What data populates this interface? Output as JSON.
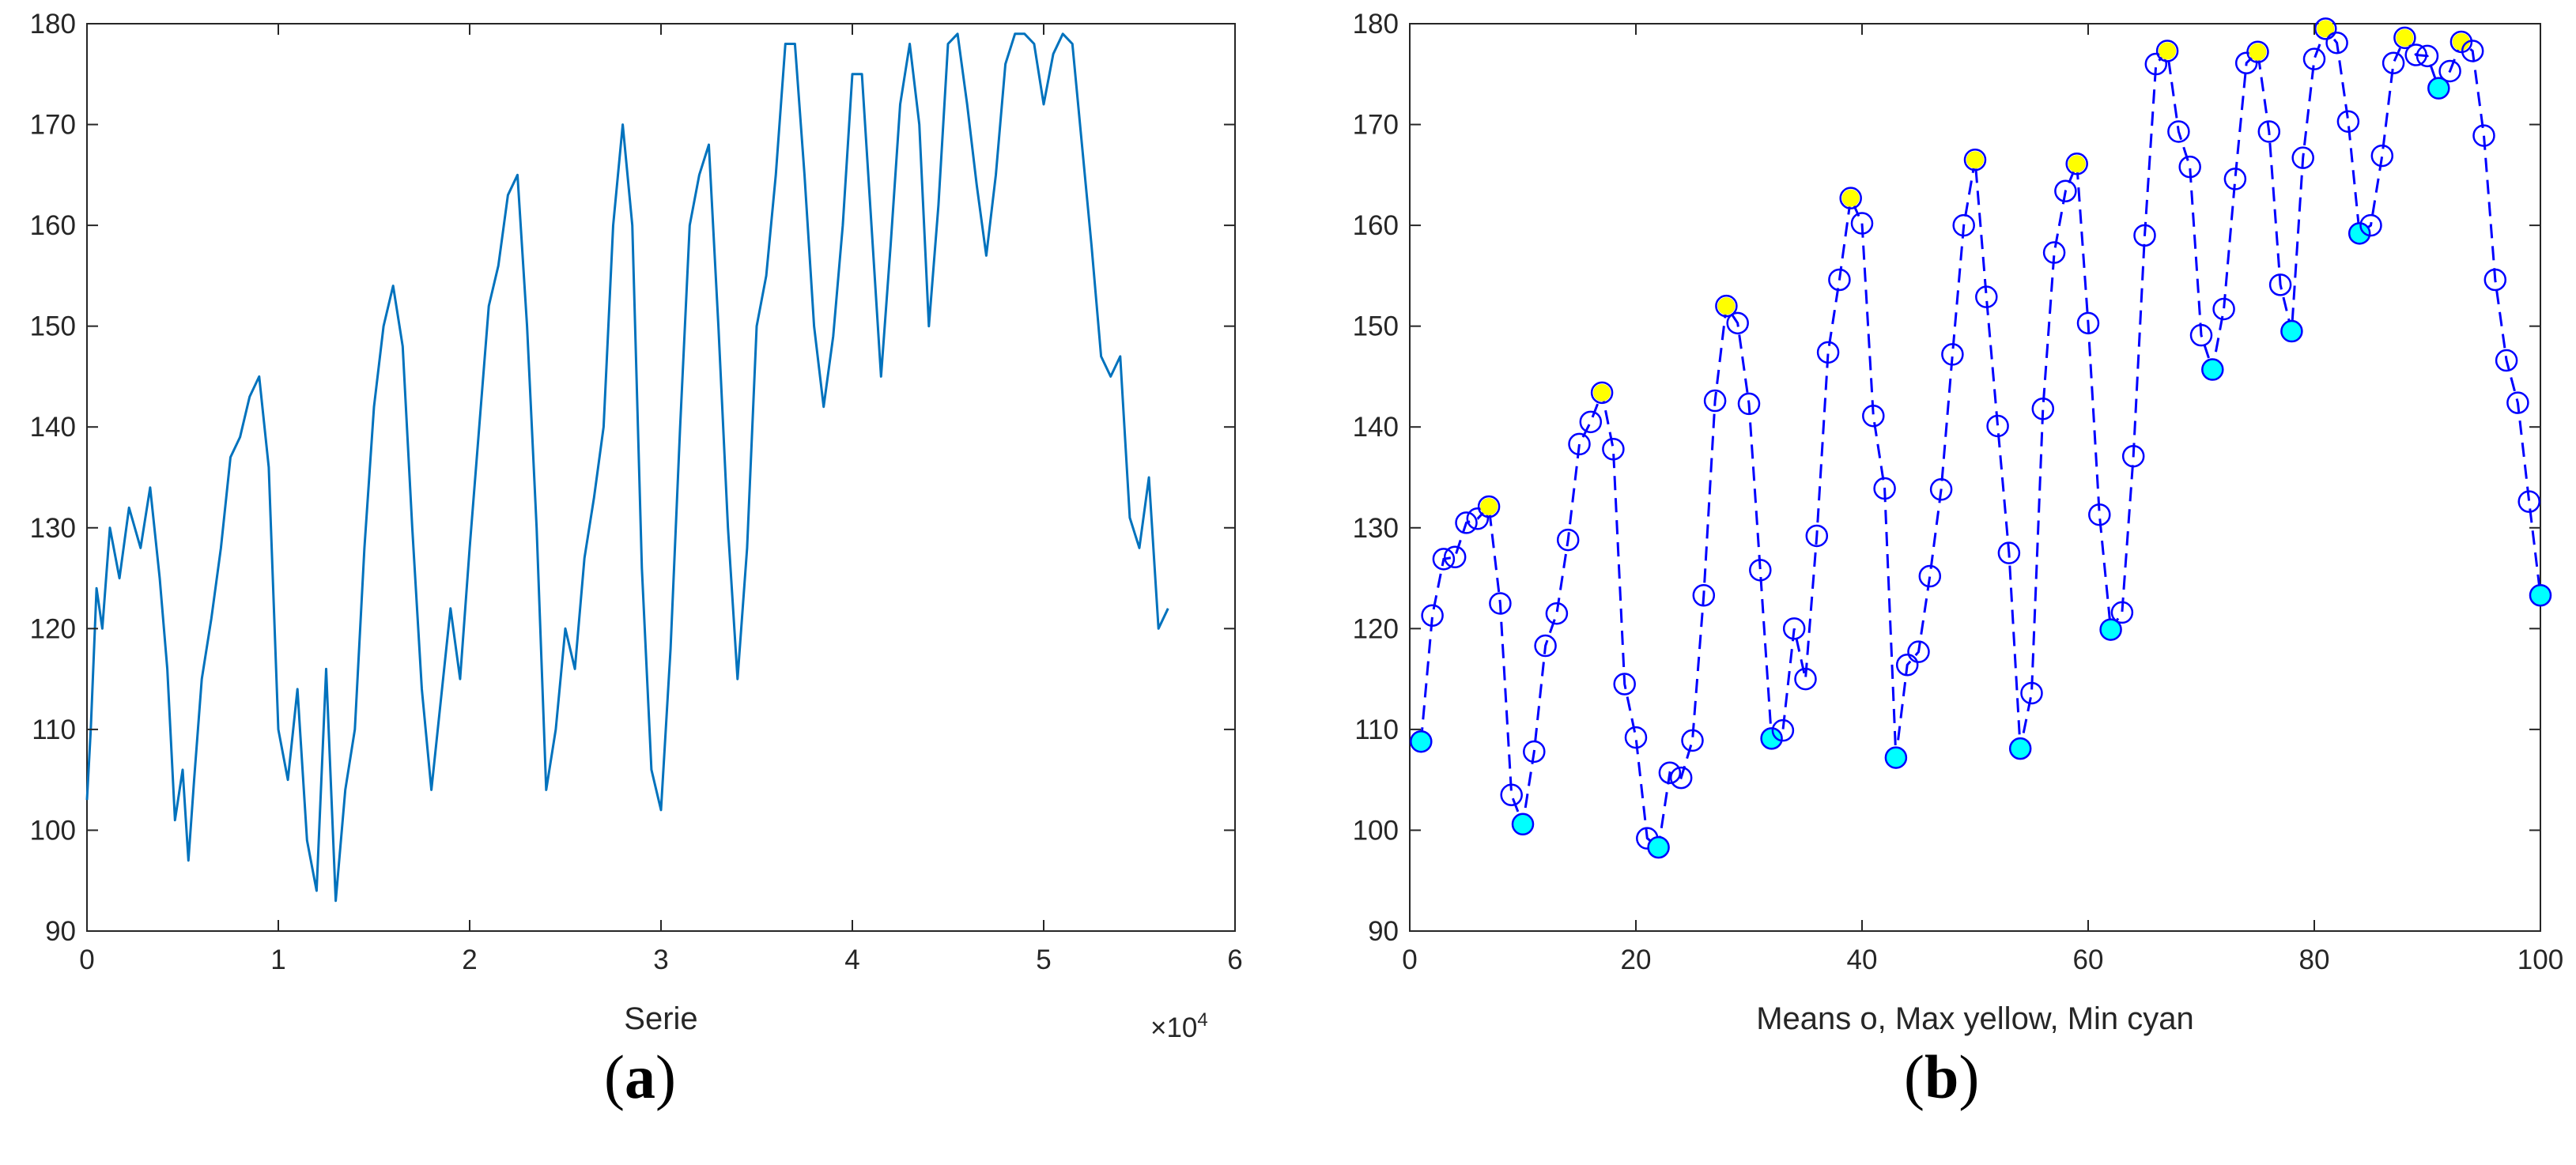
{
  "panels": [
    {
      "open": "(",
      "letter": "a",
      "close": ")"
    },
    {
      "open": "(",
      "letter": "b",
      "close": ")"
    }
  ],
  "chart_data": [
    {
      "type": "line",
      "xlabel": "Serie",
      "ylabel": "",
      "x_exponent_label": "×10",
      "x_exponent": "4",
      "xlim": [
        0,
        6
      ],
      "ylim": [
        90,
        180
      ],
      "xticks": [
        "0",
        "1",
        "2",
        "3",
        "4",
        "5",
        "6"
      ],
      "yticks": [
        "90",
        "100",
        "110",
        "120",
        "130",
        "140",
        "150",
        "160",
        "170",
        "180"
      ],
      "grid": false,
      "line_color": "#0072BD",
      "series": [
        {
          "x": [
            0,
            0.02,
            0.05,
            0.08,
            0.12,
            0.17,
            0.22,
            0.28,
            0.33,
            0.38,
            0.42,
            0.46,
            0.5,
            0.53,
            0.56,
            0.6,
            0.65,
            0.7,
            0.75,
            0.8,
            0.85,
            0.9,
            0.95,
            1.0,
            1.05,
            1.1,
            1.15,
            1.2,
            1.25,
            1.3,
            1.35,
            1.4,
            1.45,
            1.5,
            1.55,
            1.6,
            1.65,
            1.7,
            1.75,
            1.8,
            1.85,
            1.9,
            1.95,
            2.0,
            2.05,
            2.1,
            2.15,
            2.2,
            2.25,
            2.3,
            2.35,
            2.4,
            2.45,
            2.5,
            2.55,
            2.6,
            2.65,
            2.7,
            2.75,
            2.8,
            2.85,
            2.9,
            2.95,
            3.0,
            3.05,
            3.1,
            3.15,
            3.2,
            3.25,
            3.3,
            3.35,
            3.4,
            3.45,
            3.5,
            3.55,
            3.6,
            3.65,
            3.7,
            3.75,
            3.8,
            3.85,
            3.9,
            3.95,
            4.0,
            4.05,
            4.1,
            4.15,
            4.2,
            4.25,
            4.3,
            4.35,
            4.4,
            4.45,
            4.5,
            4.55,
            4.6,
            4.65,
            4.7,
            4.75,
            4.8,
            4.85,
            4.9,
            4.95,
            5.0,
            5.05,
            5.1,
            5.15,
            5.2,
            5.25,
            5.3,
            5.35,
            5.4,
            5.45,
            5.5,
            5.55,
            5.6,
            5.65
          ],
          "y": [
            103,
            110,
            124,
            120,
            130,
            125,
            132,
            128,
            134,
            125,
            116,
            101,
            106,
            97,
            105,
            115,
            121,
            128,
            137,
            139,
            143,
            145,
            136,
            110,
            105,
            114,
            99,
            94,
            116,
            93,
            104,
            110,
            128,
            142,
            150,
            154,
            148,
            130,
            114,
            104,
            113,
            122,
            115,
            128,
            140,
            152,
            156,
            163,
            165,
            150,
            130,
            104,
            110,
            120,
            116,
            127,
            133,
            140,
            160,
            170,
            160,
            126,
            106,
            102,
            118,
            140,
            160,
            165,
            168,
            150,
            130,
            115,
            128,
            150,
            155,
            165,
            178,
            178,
            165,
            150,
            142,
            149,
            160,
            175,
            175,
            160,
            145,
            158,
            172,
            178,
            170,
            150,
            162,
            178,
            179,
            172,
            164,
            157,
            165,
            176,
            179,
            179,
            178,
            172,
            177,
            179,
            178,
            168,
            158,
            147,
            145,
            147,
            131,
            128,
            135,
            120,
            122
          ]
        }
      ]
    },
    {
      "type": "line",
      "xlabel": "Means o, Max yellow, Min cyan",
      "ylabel": "",
      "xlim": [
        0,
        100
      ],
      "ylim": [
        90,
        180
      ],
      "xticks": [
        "0",
        "20",
        "40",
        "60",
        "80",
        "100"
      ],
      "yticks": [
        "90",
        "100",
        "110",
        "120",
        "130",
        "140",
        "150",
        "160",
        "170",
        "180"
      ],
      "grid": false,
      "line_style": "dashed",
      "marker": "circle",
      "line_color": "#0000FF",
      "max_color": "#FFFF00",
      "min_color": "#00FFFF",
      "series": [
        {
          "x": [
            1,
            2,
            3,
            4,
            5,
            6,
            7,
            8,
            9,
            10,
            11,
            12,
            13,
            14,
            15,
            16,
            17,
            18,
            19,
            20,
            21,
            22,
            23,
            24,
            25,
            26,
            27,
            28,
            29,
            30,
            31,
            32,
            33,
            34,
            35,
            36,
            37,
            38,
            39,
            40,
            41,
            42,
            43,
            44,
            45,
            46,
            47,
            48,
            49,
            50,
            51,
            52,
            53,
            54,
            55,
            56,
            57,
            58,
            59,
            60,
            61,
            62,
            63,
            64,
            65,
            66,
            67,
            68,
            69,
            70,
            71,
            72,
            73,
            74,
            75,
            76,
            77,
            78,
            79,
            80,
            81,
            82,
            83,
            84,
            85,
            86,
            87,
            88,
            89,
            90,
            91,
            92,
            93,
            94,
            95,
            96,
            97,
            98,
            99,
            100
          ],
          "y": [
            108.8,
            121.3,
            126.9,
            127.1,
            130.5,
            130.9,
            132.1,
            122.5,
            103.5,
            100.6,
            107.8,
            118.3,
            121.5,
            128.8,
            138.3,
            140.5,
            143.4,
            137.8,
            114.5,
            109.2,
            99.2,
            98.3,
            105.7,
            105.2,
            108.9,
            123.3,
            142.6,
            152.0,
            150.3,
            142.3,
            125.8,
            109.1,
            109.9,
            120.0,
            115.0,
            129.2,
            147.4,
            154.6,
            162.7,
            160.2,
            141.1,
            133.9,
            107.2,
            116.4,
            117.7,
            125.2,
            133.8,
            147.2,
            160.0,
            166.5,
            152.9,
            140.1,
            127.5,
            108.1,
            113.6,
            141.8,
            157.3,
            163.4,
            166.1,
            150.3,
            131.3,
            119.9,
            121.6,
            137.1,
            159.0,
            176.0,
            177.3,
            169.3,
            165.8,
            149.1,
            145.7,
            151.7,
            164.6,
            176.1,
            177.2,
            169.3,
            154.1,
            149.5,
            166.7,
            176.5,
            179.5,
            178.1,
            170.3,
            159.2,
            160.0,
            166.9,
            176.1,
            178.6,
            176.9,
            176.8,
            173.6,
            175.3,
            178.2,
            177.3,
            168.9,
            154.6,
            146.6,
            142.4,
            132.6,
            123.3
          ],
          "maxima_x": [
            7,
            17,
            28,
            39,
            50,
            59,
            67,
            75,
            81,
            88,
            93
          ],
          "minima_x": [
            1,
            10,
            22,
            32,
            43,
            54,
            62,
            71,
            78,
            84,
            91,
            100
          ]
        }
      ]
    }
  ]
}
